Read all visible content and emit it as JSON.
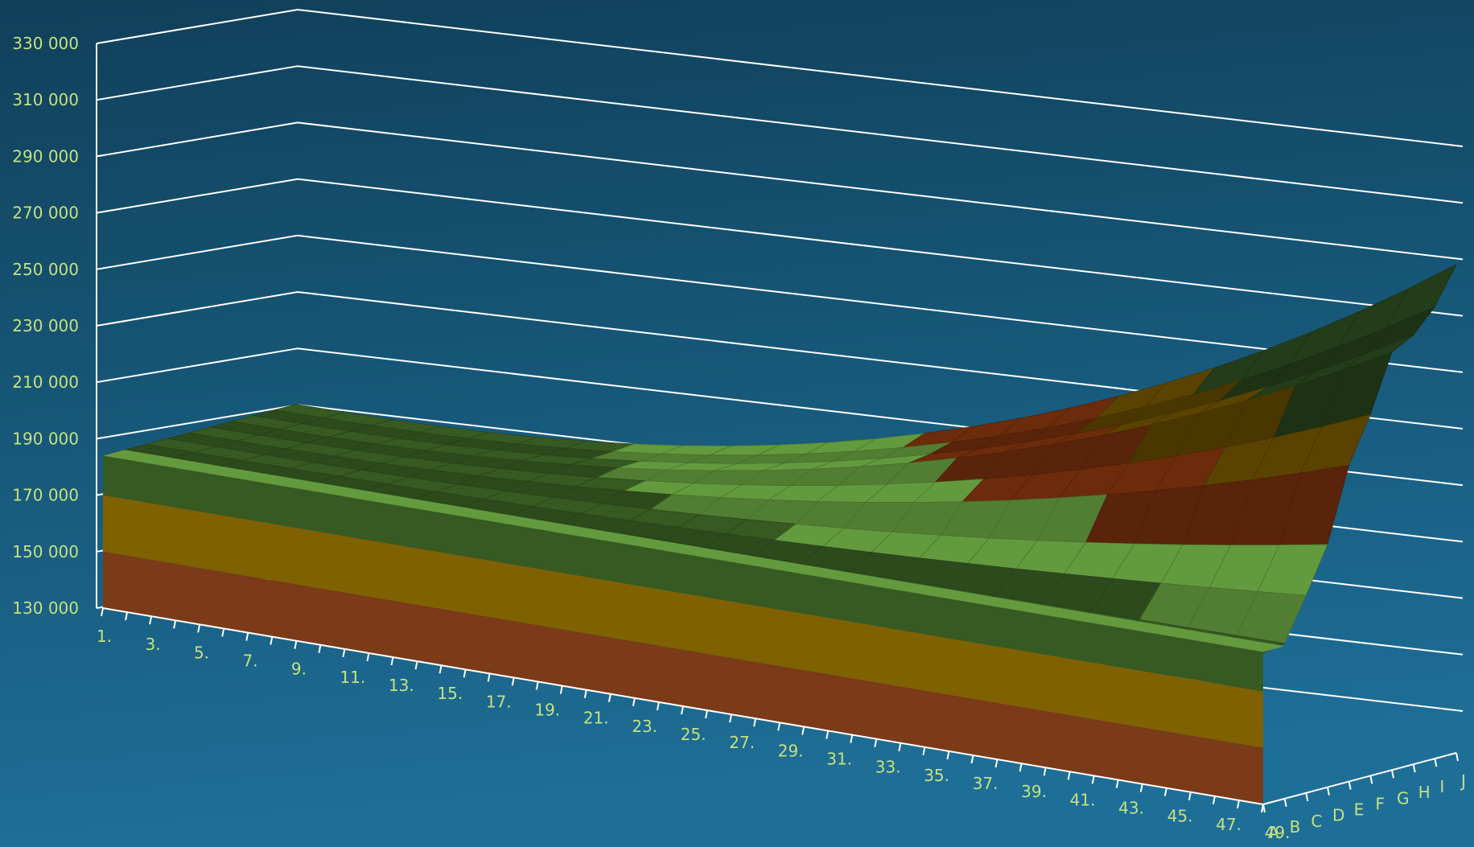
{
  "chart_data": {
    "type": "surface",
    "title": "",
    "xlabel": "",
    "ylabel": "",
    "zlabel": "",
    "ylim": [
      130000,
      330000
    ],
    "y_ticks": [
      "130 000",
      "150 000",
      "170 000",
      "190 000",
      "210 000",
      "230 000",
      "250 000",
      "270 000",
      "290 000",
      "310 000",
      "330 000"
    ],
    "x_tick_labels": [
      "1.",
      "3.",
      "5.",
      "7.",
      "9.",
      "11.",
      "13.",
      "15.",
      "17.",
      "19.",
      "21.",
      "23.",
      "25.",
      "27.",
      "29.",
      "31.",
      "33.",
      "35.",
      "37.",
      "39.",
      "41.",
      "43.",
      "45.",
      "47.",
      "49."
    ],
    "z_tick_labels": [
      "A",
      "B",
      "C",
      "D",
      "E",
      "F",
      "G",
      "H",
      "I",
      "J"
    ],
    "front_series_value": 184000,
    "last_column_values": [
      183500,
      185000,
      200000,
      216000,
      242000,
      258000,
      278000,
      282000,
      290000,
      303000
    ],
    "grid": true,
    "colors": {
      "background_top": "#10405a",
      "background_bottom": "#1e6f98",
      "grid": "#ffffff",
      "tick_label": "#c6e07f",
      "bands": [
        "#7b3a18",
        "#806100",
        "#365a22",
        "#639a3e",
        "#6c2c0c",
        "#5a4300",
        "#233d1a"
      ]
    }
  }
}
